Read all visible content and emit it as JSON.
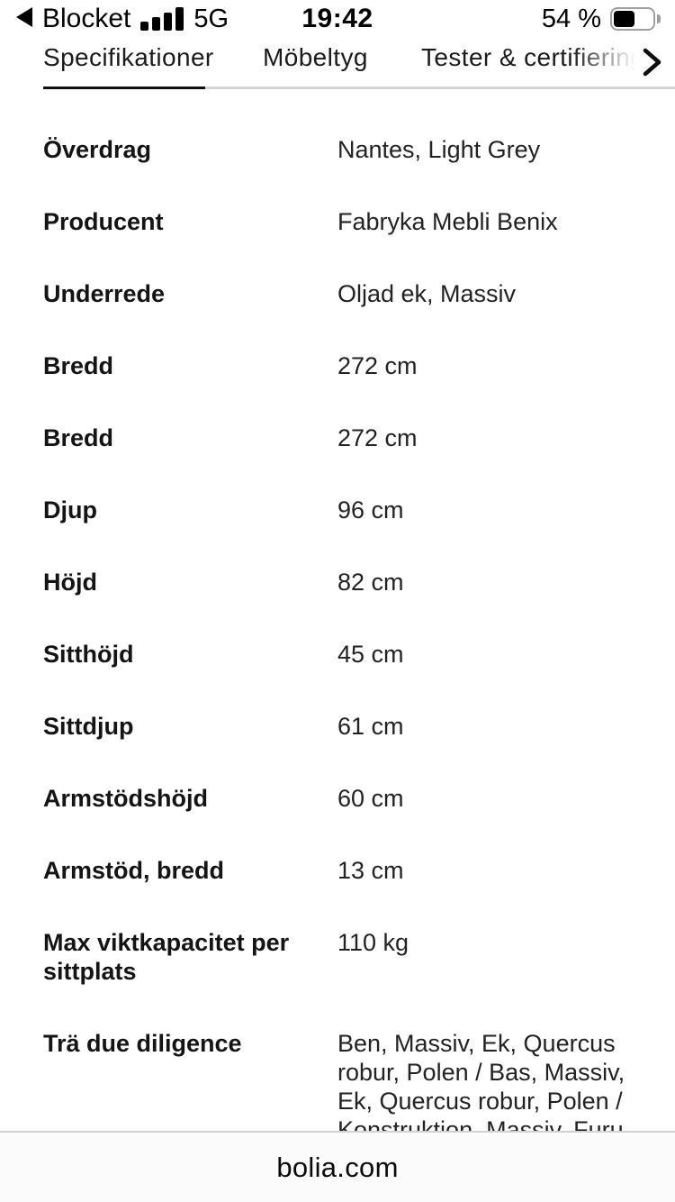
{
  "status_bar": {
    "back_icon": "left-filled-triangle",
    "back_app_label": "Blocket",
    "signal_bars_total": 4,
    "signal_bars_filled": 4,
    "network_type": "5G",
    "time": "19:42",
    "battery_label": "54 %",
    "battery_percent": 54
  },
  "tabs": {
    "items": [
      {
        "label": "Specifikationer",
        "active": true
      },
      {
        "label": "Möbeltyg",
        "active": false
      },
      {
        "label": "Tester & certifiering",
        "active": false
      }
    ],
    "overflow_chevron_icon": "chevron-right"
  },
  "specs": [
    {
      "label": "Överdrag",
      "value": "Nantes, Light Grey"
    },
    {
      "label": "Producent",
      "value": "Fabryka Mebli Benix"
    },
    {
      "label": "Underrede",
      "value": "Oljad ek, Massiv"
    },
    {
      "label": "Bredd",
      "value": "272 cm"
    },
    {
      "label": "Bredd",
      "value": "272 cm"
    },
    {
      "label": "Djup",
      "value": "96 cm"
    },
    {
      "label": "Höjd",
      "value": "82 cm"
    },
    {
      "label": "Sitthöjd",
      "value": "45 cm"
    },
    {
      "label": "Sittdjup",
      "value": "61 cm"
    },
    {
      "label": "Armstödshöjd",
      "value": "60 cm"
    },
    {
      "label": "Armstöd, bredd",
      "value": "13 cm"
    },
    {
      "label": "Max viktkapacitet per\nsittplats",
      "value": "110 kg"
    },
    {
      "label": "Trä due diligence",
      "value": "Ben, Massiv, Ek, Quercus\nrobur, Polen / Bas, Massiv,\nEk, Quercus robur, Polen /\nKonstruktion, Massiv, Furu"
    }
  ],
  "bottom_bar": {
    "url": "bolia.com"
  },
  "colors": {
    "text": "#1c1c1c",
    "active_tab_underline": "#101010",
    "inactive_tab_track": "#d6d6d6",
    "bottom_bar_bg": "#fbfbfb",
    "bottom_bar_border": "#d2d2d2",
    "battery_outline": "#9f9f9f",
    "battery_fill": "#000000"
  }
}
